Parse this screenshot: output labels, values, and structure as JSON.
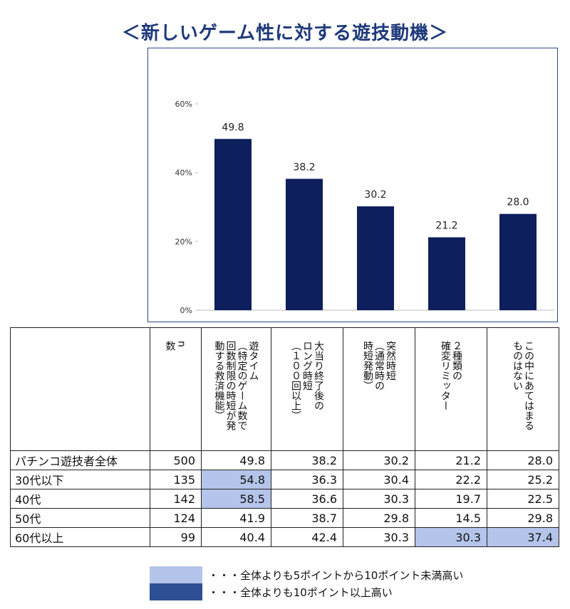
{
  "title": "＜新しいゲーム性に対する遊技動機＞",
  "colors": {
    "bar": "#0d1f5c",
    "frame": "#2d4a8a",
    "highlight_light": "#b4c4ea",
    "highlight_dark": "#2e4f94"
  },
  "chart_data": {
    "type": "bar",
    "categories": [
      "遊タイム（特定のゲーム数で回数制限の時短が発動する救済機能）",
      "大当り終了後のロング時短（１００回以上）",
      "突然時短（通常時の時短発動）",
      "２種類の確変リミッター",
      "この中にあてはまるものはない"
    ],
    "values": [
      49.8,
      38.2,
      30.2,
      21.2,
      28.0
    ],
    "value_labels": [
      "49.8",
      "38.2",
      "30.2",
      "21.2",
      "28.0"
    ],
    "ylim": [
      0,
      60
    ],
    "yticks": [
      {
        "value": 0,
        "label": "0%"
      },
      {
        "value": 20,
        "label": "20%"
      },
      {
        "value": 40,
        "label": "40%"
      },
      {
        "value": 60,
        "label": "60%"
      }
    ],
    "grid": false
  },
  "table": {
    "n_header": "n\n数",
    "col_headers": [
      "遊タイム\n（特定のゲーム数で\n回数制限の時短が発\n動する救済機能）",
      "大当り終了後の\nロング時短\n（１００回以上）",
      "突然時短\n（通常時の\n時短発動）",
      "２種類の\n確変リミッター",
      "この中にあてはまる\nものはない"
    ],
    "rows": [
      {
        "label": "パチンコ遊技者全体",
        "n": "500",
        "cells": [
          "49.8",
          "38.2",
          "30.2",
          "21.2",
          "28.0"
        ],
        "hl": [
          "",
          "",
          "",
          "",
          ""
        ]
      },
      {
        "label": "30代以下",
        "n": "135",
        "cells": [
          "54.8",
          "36.3",
          "30.4",
          "22.2",
          "25.2"
        ],
        "hl": [
          "light",
          "",
          "",
          "",
          ""
        ]
      },
      {
        "label": "40代",
        "n": "142",
        "cells": [
          "58.5",
          "36.6",
          "30.3",
          "19.7",
          "22.5"
        ],
        "hl": [
          "light",
          "",
          "",
          "",
          ""
        ]
      },
      {
        "label": "50代",
        "n": "124",
        "cells": [
          "41.9",
          "38.7",
          "29.8",
          "14.5",
          "29.8"
        ],
        "hl": [
          "",
          "",
          "",
          "",
          ""
        ]
      },
      {
        "label": "60代以上",
        "n": "99",
        "cells": [
          "40.4",
          "42.4",
          "30.3",
          "30.3",
          "37.4"
        ],
        "hl": [
          "",
          "",
          "",
          "light",
          "light"
        ]
      }
    ]
  },
  "legend": [
    {
      "text": "・・・全体よりも5ポイントから10ポイント未満高い",
      "color": "#b4c4ea"
    },
    {
      "text": "・・・全体よりも10ポイント以上高い",
      "color": "#2e4f94"
    }
  ]
}
